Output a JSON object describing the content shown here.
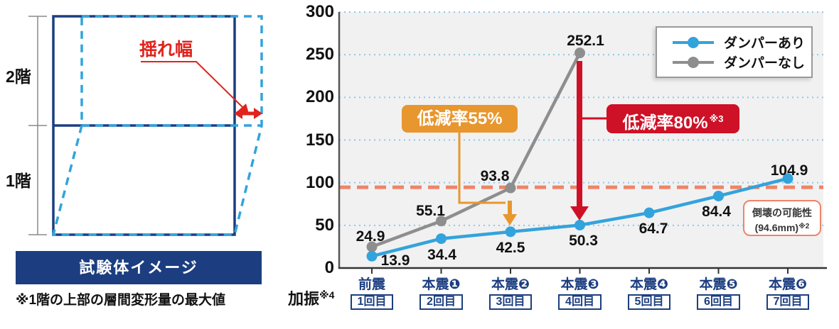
{
  "diagram": {
    "floor2_label": "2階",
    "floor1_label": "1階",
    "sway_label": "揺れ幅",
    "caption": "試験体イメージ",
    "footnote": "※1階の上部の層間変形量の最大値",
    "colors": {
      "frame_navy": "#1c3e80",
      "deformed_blue": "#33a3dc",
      "accent_red": "#e0231c"
    }
  },
  "chart_data": {
    "type": "line",
    "title": "",
    "xlabel": "加振",
    "xlabel_note": "※4",
    "ylabel": "",
    "ylim": [
      0,
      300
    ],
    "yticks": [
      0,
      50,
      100,
      150,
      200,
      250,
      300
    ],
    "grid": "dotted-horizontal",
    "grid_color": "#8fc8e8",
    "plot_background": "#f1f1f1",
    "axis_color": "#555555",
    "legend_position": "top-right",
    "categories": [
      {
        "name": "前震",
        "trial": "1回目"
      },
      {
        "name": "本震❶",
        "trial": "2回目"
      },
      {
        "name": "本震❷",
        "trial": "3回目"
      },
      {
        "name": "本震❸",
        "trial": "4回目"
      },
      {
        "name": "本震❹",
        "trial": "5回目"
      },
      {
        "name": "本震❺",
        "trial": "6回目"
      },
      {
        "name": "本震❻",
        "trial": "7回目"
      }
    ],
    "series": [
      {
        "name": "ダンパーあり",
        "color": "#33a3dc",
        "values": [
          13.9,
          34.4,
          42.5,
          50.3,
          64.7,
          84.4,
          104.9
        ]
      },
      {
        "name": "ダンパーなし",
        "color": "#8e8e8e",
        "values": [
          24.9,
          55.1,
          93.8,
          252.1
        ]
      }
    ],
    "threshold": {
      "value": 94.6,
      "color": "#ef8468",
      "label_line1": "倒壊の可能性",
      "label_line2": "(94.6mm)",
      "label_note": "※2"
    },
    "annotations": [
      {
        "label": "低減率55%",
        "note": "",
        "color": "#e8962e",
        "at_category": "本震❷",
        "arrow": "down"
      },
      {
        "label": "低減率80%",
        "note": "※3",
        "color": "#ce1126",
        "at_category": "本震❸",
        "arrow": "down"
      }
    ]
  }
}
